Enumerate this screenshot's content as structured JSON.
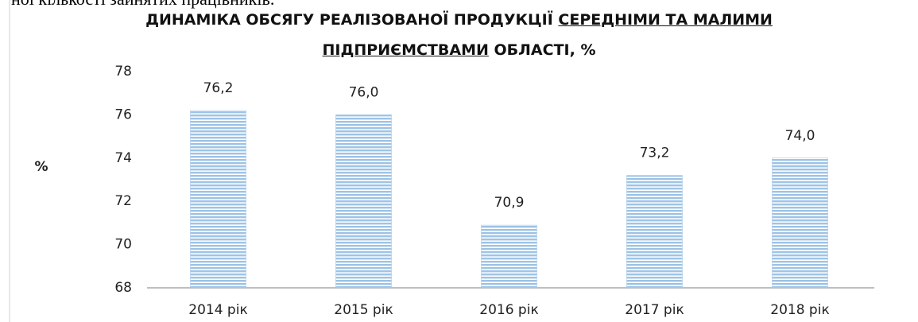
{
  "header_fragment": "ної кількості зайнятих працівників.",
  "chart_data": {
    "type": "bar",
    "title": [
      [
        {
          "text": "ДИНАМІКА ОБСЯГУ РЕАЛІЗОВАНОЇ ПРОДУКЦІЇ",
          "underline": false
        },
        {
          "text": "СЕРЕДНІМИ ТА МАЛИМИ",
          "underline": true
        }
      ],
      [
        {
          "text": "ПІДПРИЄМСТВАМИ",
          "underline": true
        },
        {
          "text": "ОБЛАСТІ, %",
          "underline": false
        }
      ]
    ],
    "y_label": "%",
    "categories": [
      "2014 рік",
      "2015 рік",
      "2016 рік",
      "2017 рік",
      "2018 рік"
    ],
    "values": [
      76.2,
      76.0,
      70.9,
      73.2,
      74.0
    ],
    "value_labels": [
      "76,2",
      "76,0",
      "70,9",
      "73,2",
      "74,0"
    ],
    "color": "#9dc3e6",
    "ylim": [
      68,
      78
    ],
    "yticks": [
      68,
      70,
      72,
      74,
      76,
      78
    ],
    "grid": false
  }
}
